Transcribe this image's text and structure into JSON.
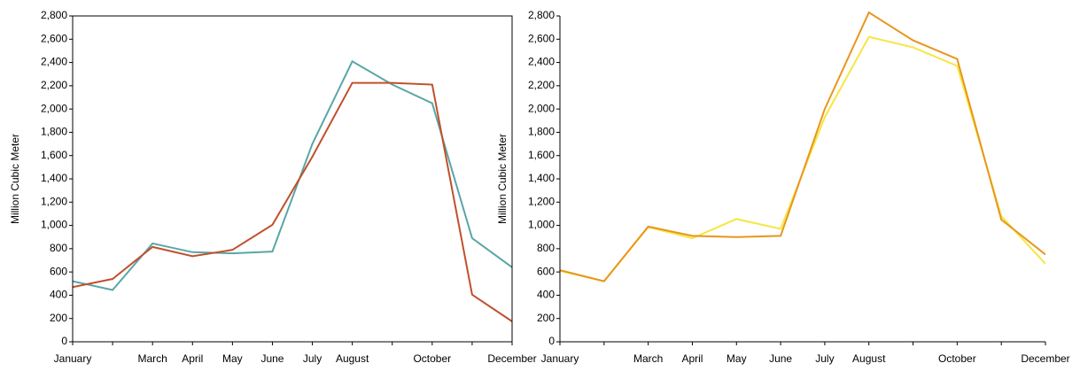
{
  "chart_data": [
    {
      "type": "line",
      "y_label": "Million Cubic Meter",
      "categories": [
        "January",
        null,
        "March",
        "April",
        "May",
        "June",
        "July",
        "August",
        null,
        "October",
        null,
        "December"
      ],
      "series": [
        {
          "color": "#5aa6a6",
          "values": [
            520,
            445,
            845,
            770,
            760,
            775,
            1700,
            2410,
            2210,
            2050,
            890,
            640
          ]
        },
        {
          "color": "#c0502c",
          "values": [
            470,
            540,
            815,
            735,
            790,
            1005,
            1590,
            2225,
            2225,
            2210,
            405,
            175
          ]
        }
      ],
      "ylim": [
        0,
        2800
      ],
      "yticks": [
        0,
        200,
        400,
        600,
        800,
        {
          "value": 1000,
          "label": "1,000"
        },
        {
          "value": 1200,
          "label": "1,200"
        },
        {
          "value": 1400,
          "label": "1,400"
        },
        {
          "value": 1600,
          "label": "1,600"
        },
        {
          "value": 1800,
          "label": "1,800"
        },
        {
          "value": 2000,
          "label": "2,000"
        },
        {
          "value": 2200,
          "label": "2,200"
        },
        {
          "value": 2400,
          "label": "2,400"
        },
        {
          "value": 2600,
          "label": "2,600"
        },
        {
          "value": 2800,
          "label": "2,800"
        }
      ],
      "box": true
    },
    {
      "type": "line",
      "y_label": "Million Cubic Meter",
      "categories": [
        "January",
        null,
        "March",
        "April",
        "May",
        "June",
        "July",
        "August",
        null,
        "October",
        null,
        "December"
      ],
      "series": [
        {
          "color": "#f5e642",
          "values": [
            610,
            520,
            985,
            890,
            1055,
            970,
            1930,
            2620,
            2530,
            2370,
            1080,
            670
          ]
        },
        {
          "color": "#e8961c",
          "values": [
            615,
            520,
            990,
            910,
            900,
            910,
            2000,
            2830,
            2590,
            2430,
            1050,
            750
          ]
        }
      ],
      "ylim": [
        0,
        2800
      ],
      "yticks": [
        0,
        200,
        400,
        600,
        800,
        {
          "value": 1000,
          "label": "1,000"
        },
        {
          "value": 1200,
          "label": "1,200"
        },
        {
          "value": 1400,
          "label": "1,400"
        },
        {
          "value": 1600,
          "label": "1,600"
        },
        {
          "value": 1800,
          "label": "1,800"
        },
        {
          "value": 2000,
          "label": "2,000"
        },
        {
          "value": 2200,
          "label": "2,200"
        },
        {
          "value": 2400,
          "label": "2,400"
        },
        {
          "value": 2600,
          "label": "2,600"
        },
        {
          "value": 2800,
          "label": "2,800"
        }
      ],
      "box": false
    }
  ]
}
